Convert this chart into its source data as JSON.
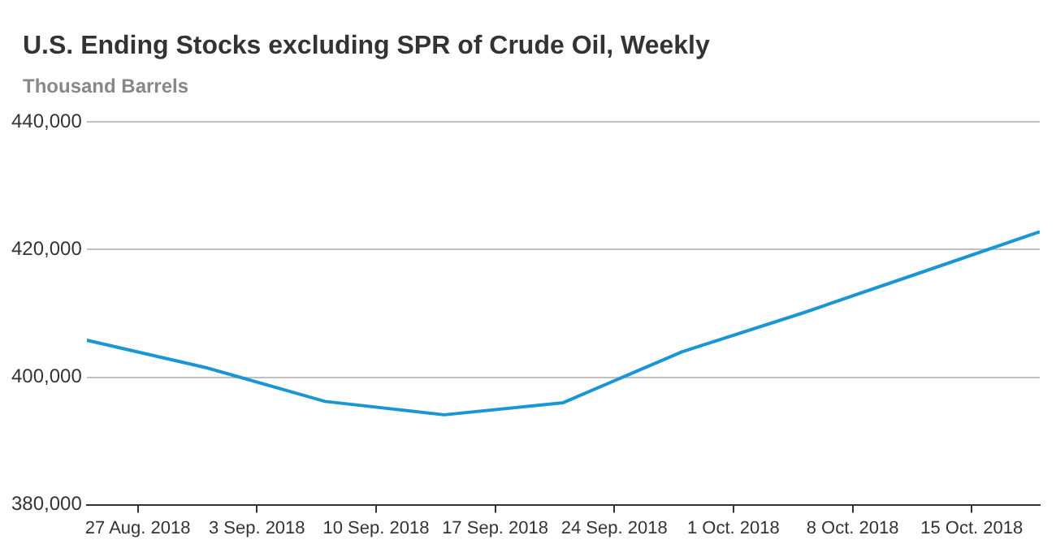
{
  "chart_data": {
    "type": "line",
    "title": "U.S. Ending Stocks excluding SPR of Crude Oil, Weekly",
    "subtitle": "Thousand Barrels",
    "x": [
      "2018-08-24",
      "2018-08-31",
      "2018-09-07",
      "2018-09-14",
      "2018-09-21",
      "2018-09-28",
      "2018-10-05",
      "2018-10-12",
      "2018-10-19"
    ],
    "series": [
      {
        "color": "#1a96d4",
        "values": [
          405800,
          401500,
          396200,
          394100,
          396000,
          404000,
          410000,
          416400,
          422800
        ]
      }
    ],
    "xlim": [
      "2018-08-24",
      "2018-10-19"
    ],
    "xticks": [
      {
        "value": "2018-08-27",
        "label": "27 Aug. 2018"
      },
      {
        "value": "2018-09-03",
        "label": "3 Sep. 2018"
      },
      {
        "value": "2018-09-10",
        "label": "10 Sep. 2018"
      },
      {
        "value": "2018-09-17",
        "label": "17 Sep. 2018"
      },
      {
        "value": "2018-09-24",
        "label": "24 Sep. 2018"
      },
      {
        "value": "2018-10-01",
        "label": "1 Oct. 2018"
      },
      {
        "value": "2018-10-08",
        "label": "8 Oct. 2018"
      },
      {
        "value": "2018-10-15",
        "label": "15 Oct. 2018"
      }
    ],
    "ylim": [
      380000,
      440000
    ],
    "yticks": [
      {
        "value": 380000,
        "label": "380,000"
      },
      {
        "value": 400000,
        "label": "400,000"
      },
      {
        "value": 420000,
        "label": "420,000"
      },
      {
        "value": 440000,
        "label": "440,000"
      }
    ],
    "grid": "y",
    "legend": false,
    "marker": "none",
    "line_style": "solid"
  }
}
